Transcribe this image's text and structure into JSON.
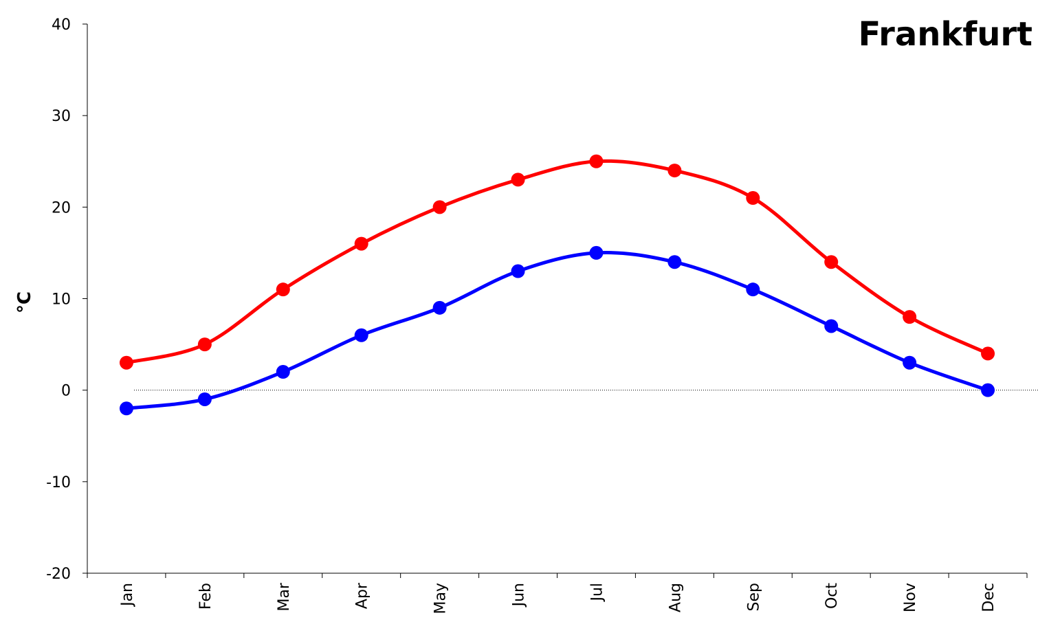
{
  "chart_data": {
    "type": "line",
    "title": "Frankfurt",
    "xlabel": "",
    "ylabel": "°C",
    "categories": [
      "Jan",
      "Feb",
      "Mar",
      "Apr",
      "May",
      "Jun",
      "Jul",
      "Aug",
      "Sep",
      "Oct",
      "Nov",
      "Dec"
    ],
    "ylim": [
      -20,
      40
    ],
    "yticks": [
      -20,
      -10,
      0,
      10,
      20,
      30,
      40
    ],
    "grid": false,
    "legend": "none",
    "zero_line": true,
    "series": [
      {
        "values": [
          3,
          5,
          11,
          16,
          20,
          23,
          25,
          24,
          21,
          14,
          8,
          4
        ],
        "color": "#ff0000"
      },
      {
        "values": [
          -2,
          -1,
          2,
          6,
          9,
          13,
          15,
          14,
          11,
          7,
          3,
          0
        ],
        "color": "#0000ff"
      }
    ]
  }
}
